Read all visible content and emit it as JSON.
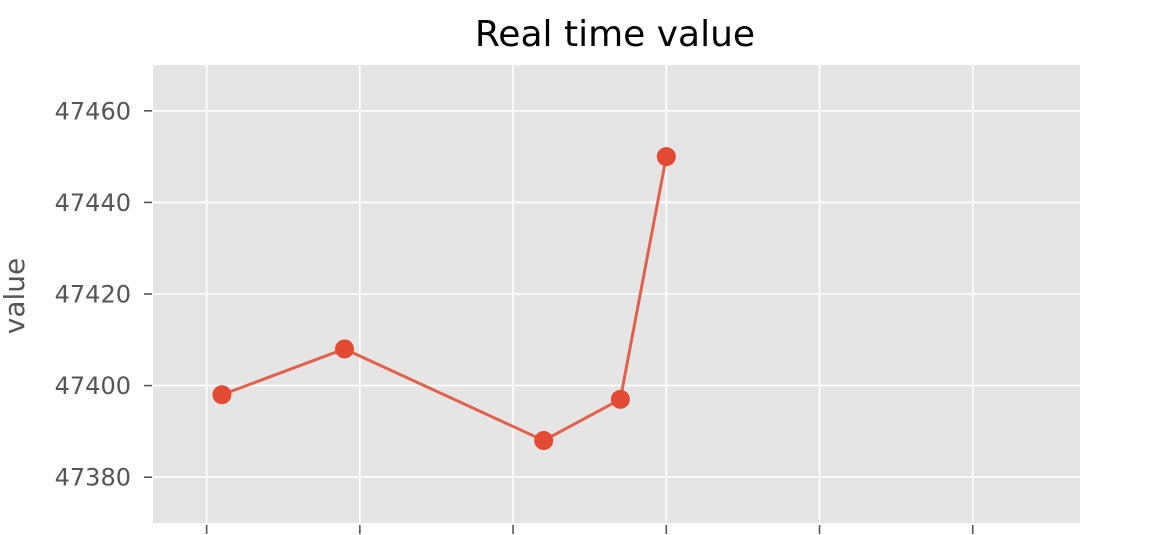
{
  "chart_data": {
    "type": "line",
    "title": "Real time value",
    "xlabel": "",
    "ylabel": "value",
    "x": [
      0.1,
      0.9,
      2.2,
      2.7,
      3.0
    ],
    "series": [
      {
        "values": [
          47398,
          47408,
          47388,
          47397,
          47450
        ]
      }
    ],
    "xlim": [
      -0.35,
      5.7
    ],
    "ylim": [
      47370,
      47470
    ],
    "x_ticks": [
      0,
      1,
      2,
      3,
      4,
      5
    ],
    "y_ticks": [
      47380,
      47400,
      47420,
      47440,
      47460
    ],
    "y_tick_labels": [
      "47380",
      "47400",
      "47420",
      "47440",
      "47460"
    ],
    "grid": true,
    "style": "ggplot",
    "colors": {
      "series": "#e24a33",
      "panel": "#e5e5e5",
      "grid": "#ffffff",
      "tick": "#555555"
    }
  }
}
